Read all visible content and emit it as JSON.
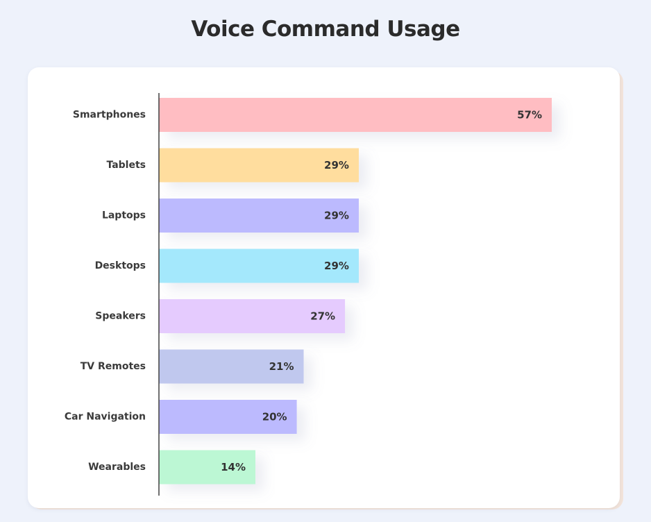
{
  "chart_data": {
    "type": "bar",
    "orientation": "horizontal",
    "title": "Voice Command Usage",
    "xlabel": "",
    "ylabel": "",
    "categories": [
      "Smartphones",
      "Tablets",
      "Laptops",
      "Desktops",
      "Speakers",
      "TV Remotes",
      "Car Navigation",
      "Wearables"
    ],
    "values": [
      57,
      29,
      29,
      29,
      27,
      21,
      20,
      14
    ],
    "value_labels": [
      "57%",
      "29%",
      "29%",
      "29%",
      "27%",
      "21%",
      "20%",
      "14%"
    ],
    "colors": [
      "#ffbdc2",
      "#ffdd9e",
      "#bcbafe",
      "#a4e8fc",
      "#e5cbfe",
      "#c0c8ee",
      "#bcbafe",
      "#bcf7d4"
    ],
    "xlim": [
      0,
      57
    ],
    "grid": false,
    "legend": "none"
  }
}
